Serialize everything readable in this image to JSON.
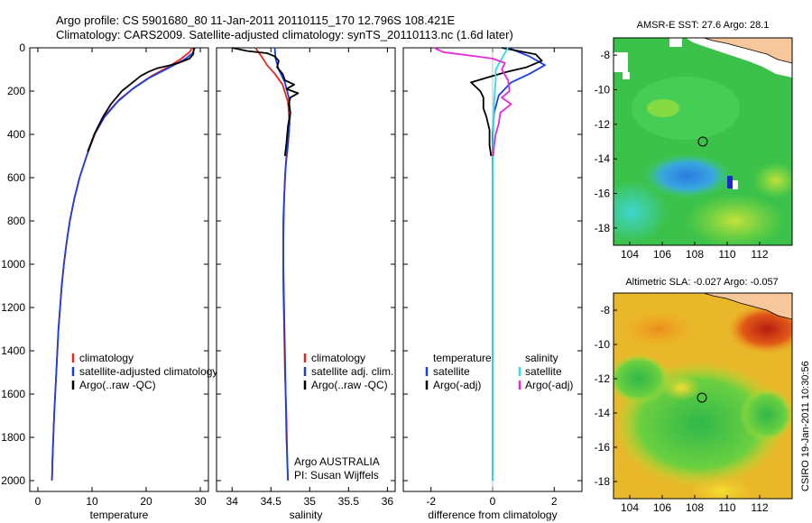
{
  "header": {
    "line1": "Argo profile: CS 5901680_80 11-Jan-2011 20110115_170 12.796S 108.421E",
    "line2": "Climatology: CARS2009. Satellite-adjusted climatology: synTS_20110113.nc (1.6d later)"
  },
  "credit": "CSIRO 19-Jan-2011 10:30:56",
  "colors": {
    "climatology": "#e8261a",
    "satellite": "#1a3ee6",
    "argo": "#000000",
    "cyan": "#2fdde8",
    "magenta": "#e62ad8",
    "land": "#f6c79a"
  },
  "chart_data": [
    {
      "type": "line",
      "xlabel": "temperature",
      "xlim": [
        -1.5,
        31.5
      ],
      "xticks": [
        "0",
        "10",
        "20",
        "30"
      ],
      "ylim": [
        0,
        2050
      ],
      "yticks": [
        "0",
        "200",
        "400",
        "600",
        "800",
        "1000",
        "1200",
        "1400",
        "1600",
        "1800",
        "2000"
      ],
      "legend": [
        "climatology",
        "satellite-adjusted climatology",
        "Argo(..raw -QC)"
      ],
      "series": [
        {
          "name": "climatology",
          "color": "#e8261a",
          "points": [
            [
              28.5,
              0
            ],
            [
              28,
              20
            ],
            [
              26.5,
              50
            ],
            [
              24,
              90
            ],
            [
              21,
              130
            ],
            [
              18,
              180
            ],
            [
              15,
              240
            ],
            [
              12.5,
              310
            ],
            [
              10.5,
              400
            ],
            [
              9,
              500
            ],
            [
              7.7,
              600
            ],
            [
              6.7,
              700
            ],
            [
              5.9,
              800
            ],
            [
              5.3,
              900
            ],
            [
              4.8,
              1000
            ],
            [
              4.4,
              1100
            ],
            [
              4.1,
              1200
            ],
            [
              3.8,
              1300
            ],
            [
              3.6,
              1400
            ],
            [
              3.4,
              1500
            ],
            [
              3.2,
              1600
            ],
            [
              3,
              1700
            ],
            [
              2.85,
              1800
            ],
            [
              2.7,
              1900
            ],
            [
              2.6,
              2000
            ]
          ]
        },
        {
          "name": "satellite-adjusted climatology",
          "color": "#1a3ee6",
          "points": [
            [
              29,
              0
            ],
            [
              28.6,
              25
            ],
            [
              27,
              55
            ],
            [
              24,
              95
            ],
            [
              20.5,
              140
            ],
            [
              17.5,
              190
            ],
            [
              14.7,
              250
            ],
            [
              12.3,
              320
            ],
            [
              10.4,
              400
            ],
            [
              9,
              500
            ],
            [
              7.7,
              600
            ],
            [
              6.7,
              700
            ],
            [
              5.9,
              800
            ],
            [
              5.3,
              900
            ],
            [
              4.8,
              1000
            ],
            [
              4.4,
              1100
            ],
            [
              4.1,
              1200
            ],
            [
              3.8,
              1300
            ],
            [
              3.6,
              1400
            ],
            [
              3.4,
              1500
            ],
            [
              3.2,
              1600
            ],
            [
              3,
              1700
            ],
            [
              2.85,
              1800
            ],
            [
              2.7,
              1900
            ],
            [
              2.6,
              2000
            ]
          ]
        },
        {
          "name": "Argo(..raw -QC)",
          "color": "#000000",
          "points": [
            [
              28.8,
              0
            ],
            [
              28.7,
              30
            ],
            [
              28,
              50
            ],
            [
              26,
              70
            ],
            [
              24.5,
              80
            ],
            [
              22,
              95
            ],
            [
              20.5,
              110
            ],
            [
              19,
              130
            ],
            [
              17.5,
              160
            ],
            [
              15.5,
              200
            ],
            [
              13.5,
              260
            ],
            [
              12,
              320
            ],
            [
              10.6,
              390
            ],
            [
              9.2,
              480
            ]
          ]
        }
      ]
    },
    {
      "type": "line",
      "xlabel": "salinity",
      "xlim": [
        33.8,
        36.1
      ],
      "xticks": [
        "34",
        "34.5",
        "35",
        "35.5",
        "36"
      ],
      "ylim": [
        0,
        2050
      ],
      "legend": [
        "climatology",
        "satellite adj. clim.",
        "Argo(..raw -QC)"
      ],
      "annotation": [
        "Argo AUSTRALIA",
        "PI: Susan Wijffels"
      ],
      "series": [
        {
          "name": "climatology",
          "color": "#e8261a",
          "points": [
            [
              34.3,
              0
            ],
            [
              34.38,
              40
            ],
            [
              34.45,
              80
            ],
            [
              34.55,
              120
            ],
            [
              34.65,
              170
            ],
            [
              34.72,
              250
            ],
            [
              34.74,
              350
            ],
            [
              34.72,
              450
            ],
            [
              34.69,
              550
            ],
            [
              34.67,
              700
            ],
            [
              34.66,
              900
            ],
            [
              34.66,
              1100
            ],
            [
              34.67,
              1300
            ],
            [
              34.68,
              1500
            ],
            [
              34.7,
              1700
            ],
            [
              34.71,
              1900
            ],
            [
              34.72,
              2000
            ]
          ]
        },
        {
          "name": "satellite adj. clim.",
          "color": "#1a3ee6",
          "points": [
            [
              34.55,
              0
            ],
            [
              34.56,
              50
            ],
            [
              34.6,
              100
            ],
            [
              34.68,
              160
            ],
            [
              34.73,
              230
            ],
            [
              34.75,
              300
            ],
            [
              34.73,
              400
            ],
            [
              34.7,
              500
            ],
            [
              34.68,
              600
            ],
            [
              34.66,
              800
            ],
            [
              34.66,
              1000
            ],
            [
              34.67,
              1200
            ],
            [
              34.68,
              1400
            ],
            [
              34.69,
              1600
            ],
            [
              34.7,
              1800
            ],
            [
              34.72,
              2000
            ]
          ]
        },
        {
          "name": "Argo(..raw -QC)",
          "color": "#000000",
          "points": [
            [
              34,
              0
            ],
            [
              34.2,
              15
            ],
            [
              34.45,
              25
            ],
            [
              34.55,
              40
            ],
            [
              34.6,
              60
            ],
            [
              34.58,
              90
            ],
            [
              34.65,
              120
            ],
            [
              34.68,
              150
            ],
            [
              34.8,
              170
            ],
            [
              34.7,
              190
            ],
            [
              34.85,
              210
            ],
            [
              34.75,
              230
            ],
            [
              34.73,
              260
            ],
            [
              34.75,
              300
            ],
            [
              34.72,
              360
            ],
            [
              34.7,
              440
            ],
            [
              34.68,
              500
            ]
          ]
        }
      ]
    },
    {
      "type": "line",
      "xlabel": "difference from climatology",
      "xlim": [
        -2.9,
        2.9
      ],
      "xticks": [
        "-2",
        "0",
        "2"
      ],
      "ylim": [
        0,
        2050
      ],
      "legend": {
        "left": [
          "temperature",
          "satellite",
          "Argo(-adj)"
        ],
        "right": [
          "salinity",
          "satellite",
          "Argo(-adj)"
        ]
      },
      "series": [
        {
          "name": "temperature satellite",
          "color": "#1a3ee6",
          "points": [
            [
              0.5,
              0
            ],
            [
              1.2,
              40
            ],
            [
              1.7,
              80
            ],
            [
              1.2,
              120
            ],
            [
              0.6,
              160
            ],
            [
              0.2,
              220
            ],
            [
              0.05,
              300
            ],
            [
              0,
              400
            ],
            [
              0,
              600
            ],
            [
              0,
              1000
            ],
            [
              0,
              1400
            ],
            [
              0,
              2000
            ]
          ]
        },
        {
          "name": "temperature Argo(-adj)",
          "color": "#000000",
          "points": [
            [
              0.3,
              0
            ],
            [
              1.4,
              30
            ],
            [
              1.6,
              60
            ],
            [
              1.1,
              90
            ],
            [
              0.5,
              110
            ],
            [
              0,
              130
            ],
            [
              -0.7,
              160
            ],
            [
              -0.4,
              200
            ],
            [
              -0.3,
              230
            ],
            [
              -0.3,
              280
            ],
            [
              -0.2,
              320
            ],
            [
              -0.1,
              380
            ],
            [
              -0.1,
              450
            ],
            [
              -0.05,
              500
            ]
          ]
        },
        {
          "name": "salinity satellite",
          "color": "#2fdde8",
          "points": [
            [
              0.5,
              0
            ],
            [
              0.3,
              50
            ],
            [
              0.1,
              100
            ],
            [
              0.1,
              150
            ],
            [
              0.05,
              250
            ],
            [
              0.02,
              400
            ],
            [
              0,
              600
            ],
            [
              0,
              900
            ],
            [
              0,
              1200
            ],
            [
              0,
              1500
            ],
            [
              0,
              1800
            ],
            [
              0,
              2000
            ]
          ]
        },
        {
          "name": "salinity Argo(-adj)",
          "color": "#e62ad8",
          "points": [
            [
              -1.9,
              0
            ],
            [
              -1.6,
              20
            ],
            [
              -0.5,
              40
            ],
            [
              0,
              50
            ],
            [
              0.4,
              70
            ],
            [
              0.3,
              100
            ],
            [
              0.5,
              150
            ],
            [
              0.55,
              200
            ],
            [
              0.3,
              230
            ],
            [
              0.6,
              260
            ],
            [
              0.25,
              300
            ],
            [
              0.2,
              350
            ],
            [
              0.1,
              400
            ],
            [
              0.05,
              450
            ],
            [
              0.02,
              500
            ]
          ]
        }
      ]
    },
    {
      "type": "heatmap",
      "title": "AMSR-E SST: 27.6 Argo: 28.1",
      "xticks": [
        "104",
        "106",
        "108",
        "110",
        "112"
      ],
      "yticks": [
        "-8",
        "-10",
        "-12",
        "-14",
        "-16",
        "-18"
      ],
      "xlim": [
        103,
        114
      ],
      "ylim": [
        -19,
        -7
      ]
    },
    {
      "type": "heatmap",
      "title": "Altimetric SLA: -0.027 Argo: -0.057",
      "xticks": [
        "104",
        "106",
        "108",
        "110",
        "112"
      ],
      "yticks": [
        "-8",
        "-10",
        "-12",
        "-14",
        "-16",
        "-18"
      ],
      "xlim": [
        103,
        114
      ],
      "ylim": [
        -19,
        -7
      ]
    }
  ]
}
